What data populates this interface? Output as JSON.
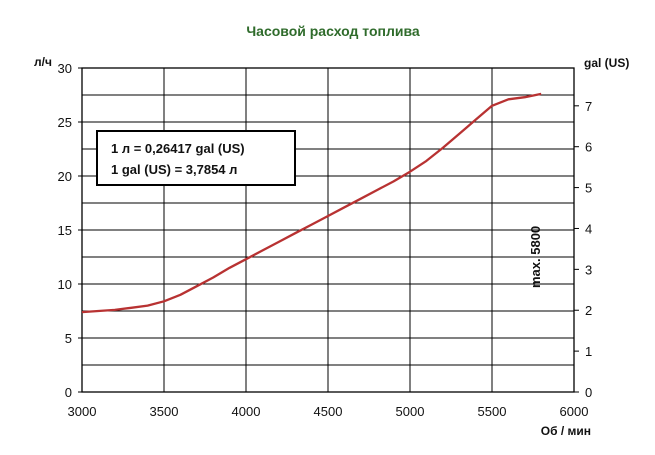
{
  "chart_data": {
    "type": "line",
    "title": "Часовой расход топлива",
    "xlabel": "Об / мин",
    "ylabel_left": "л/ч",
    "ylabel_right": "gal (US)",
    "xlim": [
      3000,
      6000
    ],
    "ylim_left": [
      0,
      30
    ],
    "ylim_right": [
      0,
      7.925
    ],
    "x_ticks": [
      "3000",
      "3500",
      "4000",
      "4500",
      "5000",
      "5500",
      "6000"
    ],
    "y_left_ticks": [
      "0",
      "5",
      "10",
      "15",
      "20",
      "25",
      "30"
    ],
    "y_right_ticks": [
      "0",
      "1",
      "2",
      "3",
      "4",
      "5",
      "6",
      "7"
    ],
    "grid": true,
    "series": [
      {
        "x": [
          3000,
          3100,
          3200,
          3300,
          3400,
          3500,
          3600,
          3700,
          3800,
          3900,
          4000,
          4100,
          4200,
          4300,
          4400,
          4500,
          4600,
          4700,
          4800,
          4900,
          5000,
          5100,
          5200,
          5300,
          5400,
          5500,
          5600,
          5700,
          5800
        ],
        "y": [
          7.4,
          7.5,
          7.6,
          7.8,
          8.0,
          8.4,
          9.0,
          9.8,
          10.6,
          11.5,
          12.3,
          13.1,
          13.9,
          14.7,
          15.5,
          16.3,
          17.1,
          17.9,
          18.7,
          19.5,
          20.4,
          21.4,
          22.6,
          23.9,
          25.2,
          26.5,
          27.1,
          27.3,
          27.6
        ]
      }
    ],
    "annotation_box": [
      "1 л = 0,26417 gal (US)",
      "1 gal (US) = 3,7854 л"
    ],
    "marker_label": "max. 5800",
    "colors": {
      "line": "#b83232",
      "title": "#2f6b2b",
      "grid": "#000000"
    }
  }
}
